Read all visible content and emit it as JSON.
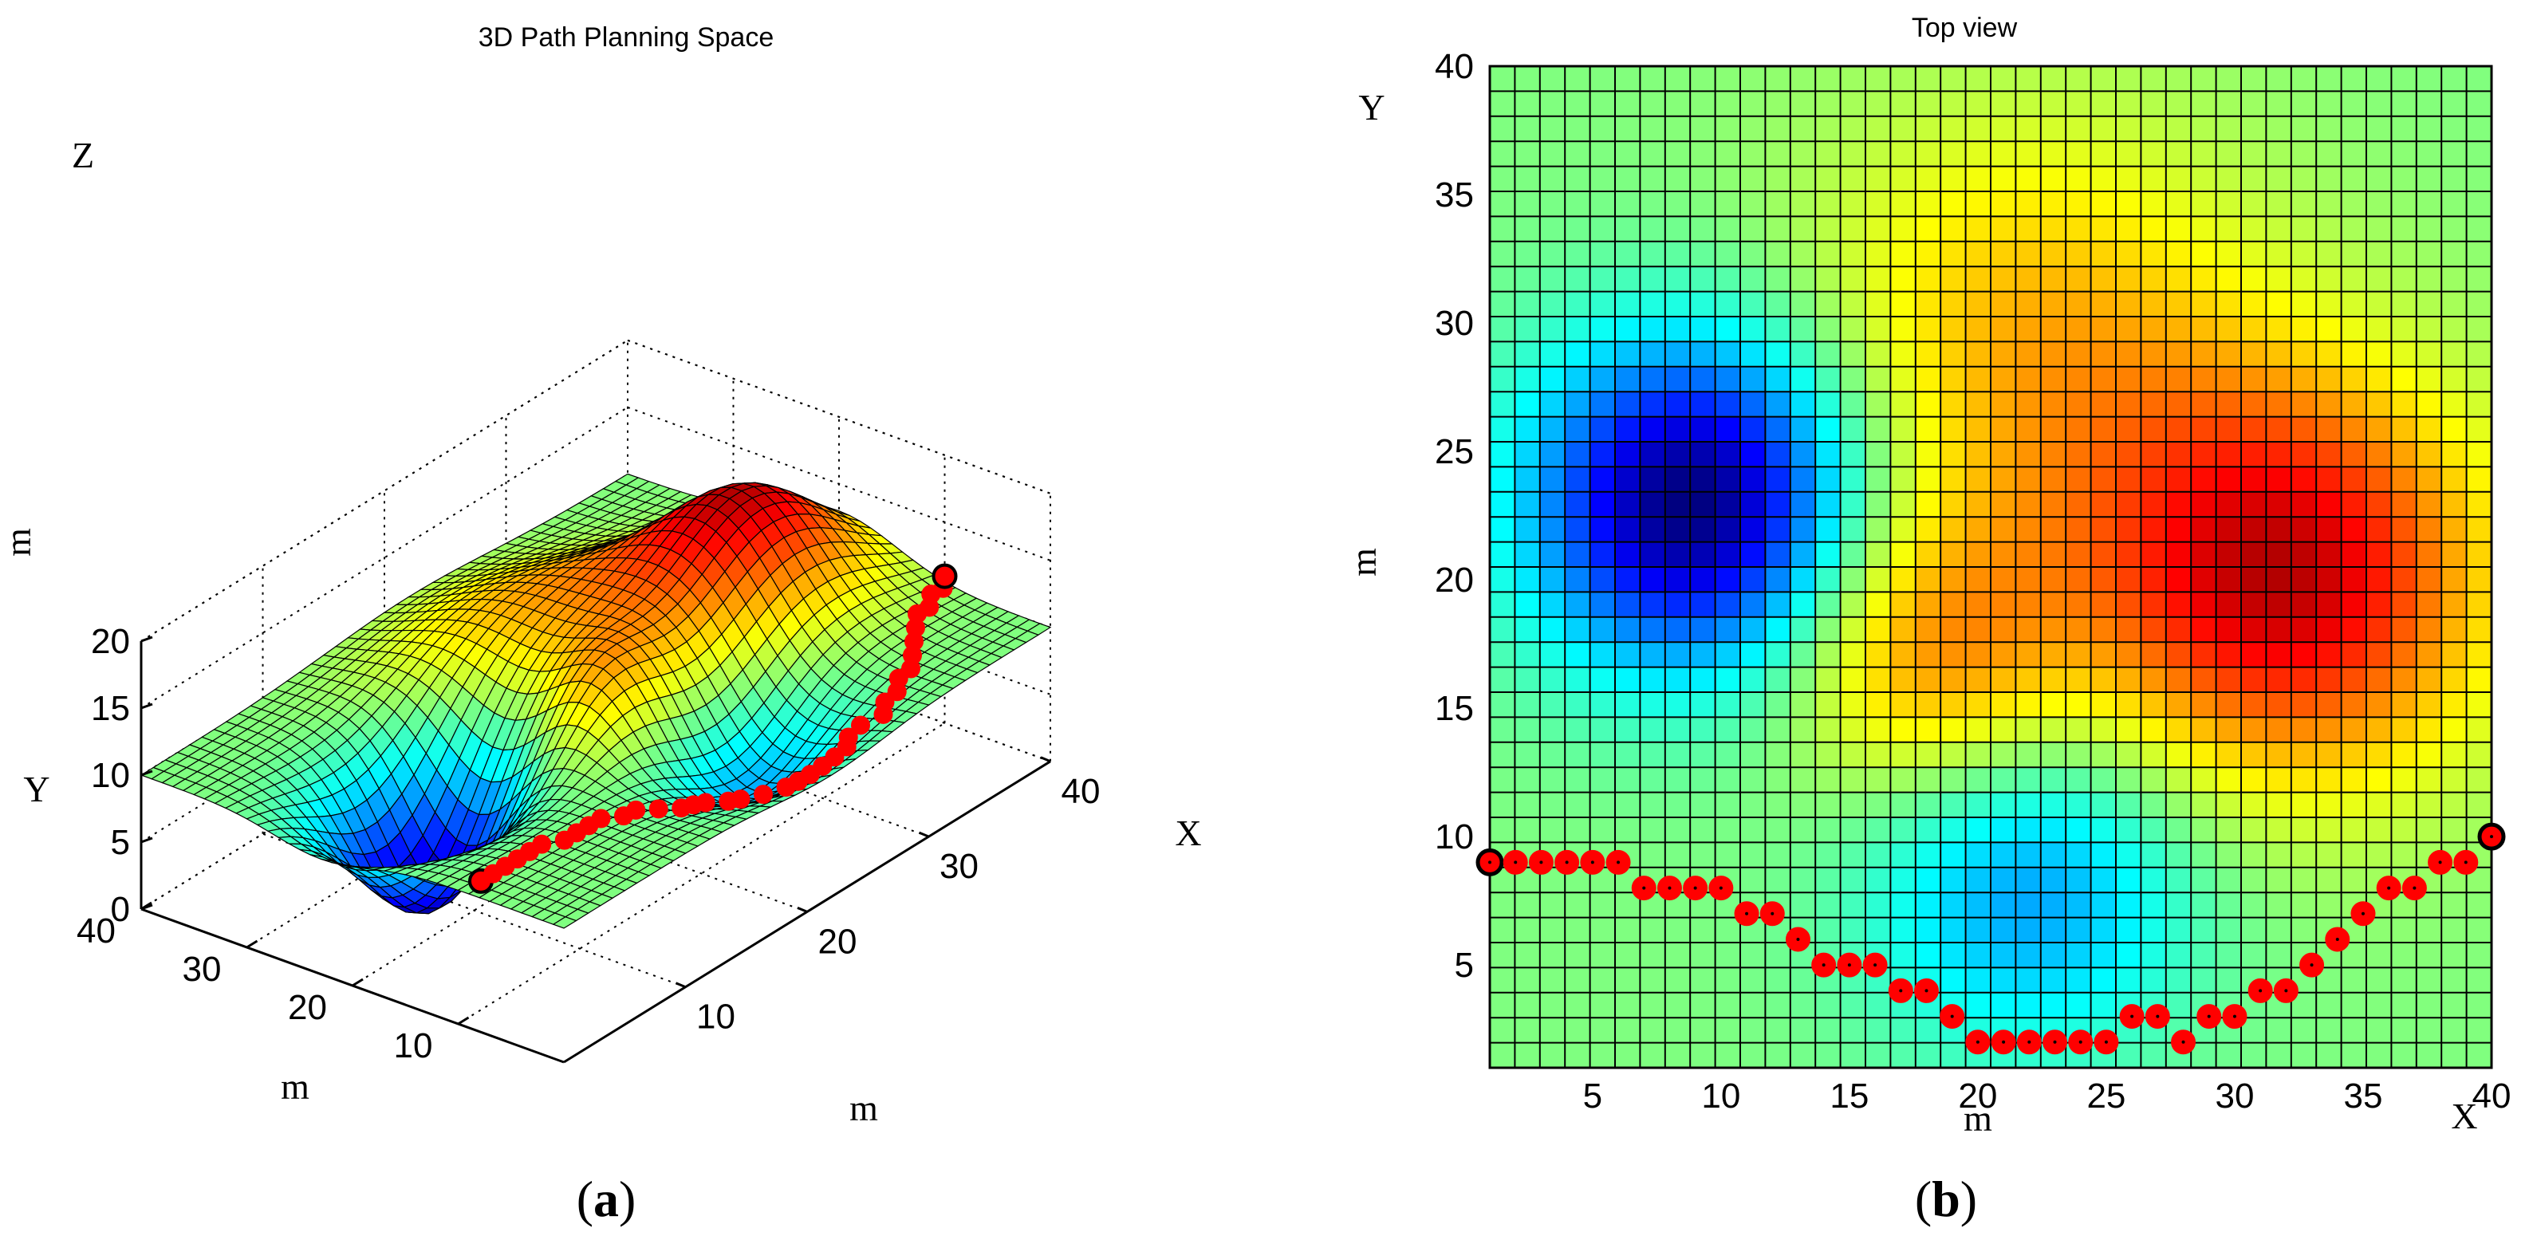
{
  "chart_data": [
    {
      "type": "surface",
      "title": "3D Path Planning Space",
      "caption": "a",
      "xlabel": "m",
      "ylabel": "m",
      "zlabel": "m",
      "x_axis_letter": "X",
      "y_axis_letter": "Y",
      "z_axis_letter": "Z",
      "xlim": [
        0,
        40
      ],
      "ylim": [
        0,
        40
      ],
      "zlim": [
        0,
        20
      ],
      "xticks": [
        "10",
        "20",
        "30",
        "40"
      ],
      "yticks": [
        "10",
        "20",
        "30",
        "40"
      ],
      "zticks": [
        "0",
        "5",
        "10",
        "15",
        "20"
      ],
      "grid": true,
      "colormap": "jet",
      "base_height": 10,
      "bumps": [
        {
          "x": 32,
          "y": 20,
          "amp": 8.5,
          "sigma": 5.5
        },
        {
          "x": 22,
          "y": 29,
          "amp": 4.0,
          "sigma": 6.5
        },
        {
          "x": 18,
          "y": 17,
          "amp": 4.5,
          "sigma": 4.0
        },
        {
          "x": 9,
          "y": 23,
          "amp": -10.5,
          "sigma": 4.5
        },
        {
          "x": 22,
          "y": 8,
          "amp": -4.5,
          "sigma": 4.5
        }
      ],
      "path_color": "#ff0000"
    },
    {
      "type": "heatmap",
      "title": "Top view",
      "caption": "b",
      "xlabel": "m",
      "ylabel": "m",
      "x_axis_letter": "X",
      "y_axis_letter": "Y",
      "xlim": [
        1,
        40
      ],
      "ylim": [
        1,
        40
      ],
      "xticks": [
        "5",
        "10",
        "15",
        "20",
        "25",
        "30",
        "35",
        "40"
      ],
      "yticks": [
        "5",
        "10",
        "15",
        "20",
        "25",
        "30",
        "35",
        "40"
      ],
      "grid": true,
      "colormap": "jet",
      "path_color": "#ff0000",
      "path": {
        "x": [
          1,
          2,
          3,
          4,
          5,
          6,
          7,
          8,
          9,
          10,
          11,
          12,
          13,
          14,
          15,
          16,
          17,
          18,
          19,
          20,
          21,
          22,
          23,
          24,
          25,
          26,
          27,
          28,
          29,
          30,
          31,
          32,
          33,
          34,
          35,
          36,
          37,
          38,
          39,
          40
        ],
        "y": [
          9,
          9,
          9,
          9,
          9,
          9,
          8,
          8,
          8,
          8,
          7,
          7,
          6,
          5,
          5,
          5,
          4,
          4,
          3,
          2,
          2,
          2,
          2,
          2,
          2,
          3,
          3,
          2,
          3,
          3,
          4,
          4,
          5,
          6,
          7,
          8,
          8,
          9,
          9,
          10
        ]
      }
    }
  ]
}
